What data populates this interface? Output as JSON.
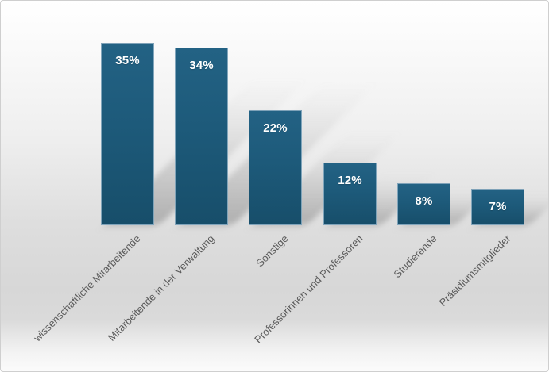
{
  "chart_data": {
    "type": "bar",
    "orientation": "vertical",
    "title": "",
    "xlabel": "",
    "ylabel": "",
    "categories": [
      "wissenschaftliche Mitarbeitende",
      "Mitarbeitende in der Verwaltung",
      "Sonstige",
      "Professorinnen und Professoren",
      "Studierende",
      "Präsidiumsmitglieder"
    ],
    "values": [
      35,
      34,
      22,
      12,
      8,
      7
    ],
    "value_labels": [
      "35%",
      "34%",
      "22%",
      "12%",
      "8%",
      "7%"
    ],
    "unit": "percent",
    "ylim": [
      0,
      40
    ],
    "grid": false,
    "legend": null,
    "axes_shown": false,
    "category_label_rotation_deg": 45,
    "colors": {
      "bar_fill": "#1d5a7a",
      "bar_border": "#92b2c5",
      "value_label_text": "#ffffff",
      "category_label_text": "#5b5b5b",
      "background_top": "#ffffff",
      "background_mid": "#d7d7d7",
      "background_bottom": "#fbfbfb",
      "frame_border": "#cfcfcf",
      "bar_shadow": "#696969"
    }
  }
}
